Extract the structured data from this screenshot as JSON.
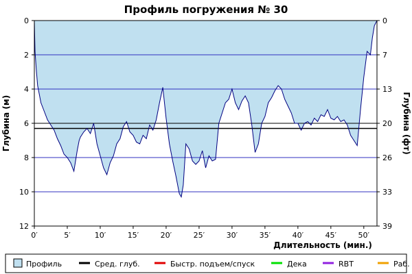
{
  "chart_data": {
    "type": "area",
    "title": "Профиль погружения № 30",
    "xlabel": "Длительность (мин.)",
    "ylabel_left": "Глубина (м)",
    "ylabel_right": "Глубина (фт)",
    "xlim": [
      0,
      52
    ],
    "ylim": [
      0,
      12
    ],
    "y_inverted": true,
    "x_ticks": [
      "0′",
      "5′",
      "10′",
      "15′",
      "20′",
      "25′",
      "30′",
      "35′",
      "40′",
      "45′",
      "50′"
    ],
    "x_tick_values": [
      0,
      5,
      10,
      15,
      20,
      25,
      30,
      35,
      40,
      45,
      50
    ],
    "y_ticks_left": [
      "0",
      "2",
      "4",
      "6",
      "8",
      "10",
      "12"
    ],
    "y_tick_values_left": [
      0,
      2,
      4,
      6,
      8,
      10,
      12
    ],
    "y_ticks_right": [
      "0",
      "7",
      "13",
      "20",
      "26",
      "33",
      "39"
    ],
    "grid": true,
    "colors": {
      "profile_fill": "#c0e0f0",
      "profile_line": "#000080",
      "grid": "#3030c0",
      "avg": "#000000"
    },
    "average_depth": 6.3,
    "reference_depth": 6.0,
    "series": [
      {
        "name": "Профиль",
        "x": [
          0,
          0.1,
          0.3,
          0.5,
          1.0,
          1.5,
          2.0,
          2.5,
          3.0,
          3.5,
          4.0,
          4.5,
          5.0,
          5.5,
          6.0,
          6.5,
          6.8,
          7.0,
          7.5,
          8.0,
          8.5,
          9.0,
          9.5,
          10.0,
          10.5,
          11.0,
          11.5,
          12.0,
          12.5,
          13.0,
          13.5,
          14.0,
          14.5,
          15.0,
          15.5,
          16.0,
          16.5,
          17.0,
          17.5,
          18.0,
          18.5,
          19.0,
          19.5,
          20.0,
          20.5,
          21.0,
          21.5,
          22.0,
          22.3,
          22.6,
          23.0,
          23.5,
          24.0,
          24.5,
          25.0,
          25.5,
          26.0,
          26.5,
          27.0,
          27.5,
          28.0,
          28.5,
          29.0,
          29.5,
          30.0,
          30.5,
          31.0,
          31.5,
          32.0,
          32.5,
          33.0,
          33.5,
          34.0,
          34.5,
          35.0,
          35.5,
          36.0,
          36.5,
          37.0,
          37.5,
          38.0,
          38.5,
          39.0,
          39.5,
          40.0,
          40.5,
          41.0,
          41.5,
          42.0,
          42.5,
          43.0,
          43.5,
          44.0,
          44.5,
          45.0,
          45.5,
          46.0,
          46.5,
          47.0,
          47.5,
          48.0,
          48.5,
          49.0,
          49.5,
          50.0,
          50.5,
          51.0,
          51.3,
          51.6,
          52.0
        ],
        "values": [
          0,
          1.8,
          2.9,
          3.8,
          4.8,
          5.3,
          5.8,
          6.1,
          6.4,
          6.9,
          7.3,
          7.8,
          8.0,
          8.3,
          8.8,
          7.6,
          7.0,
          6.8,
          6.5,
          6.3,
          6.6,
          6.0,
          7.2,
          7.9,
          8.6,
          9.0,
          8.3,
          7.9,
          7.2,
          6.9,
          6.2,
          5.9,
          6.5,
          6.7,
          7.1,
          7.2,
          6.7,
          6.9,
          6.1,
          6.4,
          5.8,
          4.8,
          3.9,
          5.7,
          7.2,
          8.2,
          9.1,
          10.1,
          10.3,
          9.6,
          7.2,
          7.5,
          8.2,
          8.4,
          8.2,
          7.6,
          8.6,
          7.9,
          8.2,
          8.1,
          6.0,
          5.4,
          4.8,
          4.6,
          4.0,
          4.8,
          5.2,
          4.7,
          4.4,
          4.8,
          6.1,
          7.7,
          7.2,
          6.0,
          5.6,
          4.8,
          4.5,
          4.1,
          3.8,
          4.0,
          4.6,
          5.0,
          5.4,
          6.0,
          6.0,
          6.4,
          6.0,
          5.9,
          6.1,
          5.7,
          5.9,
          5.5,
          5.6,
          5.2,
          5.7,
          5.8,
          5.6,
          5.9,
          5.8,
          6.1,
          6.7,
          7.0,
          7.3,
          5.2,
          3.3,
          1.8,
          2.0,
          1.0,
          0.3,
          0
        ]
      }
    ],
    "legend": {
      "placement": "bottom",
      "items": [
        {
          "label": "Профиль",
          "color": "#c0e0f0",
          "kind": "box"
        },
        {
          "label": "Сред. глуб.",
          "color": "#000000",
          "kind": "line"
        },
        {
          "label": "Быстр. подъем/спуск",
          "color": "#e00000",
          "kind": "line"
        },
        {
          "label": "Дека",
          "color": "#00e000",
          "kind": "line"
        },
        {
          "label": "RBT",
          "color": "#9020e0",
          "kind": "line"
        },
        {
          "label": "Раб.",
          "color": "#f0a000",
          "kind": "line"
        }
      ]
    }
  }
}
